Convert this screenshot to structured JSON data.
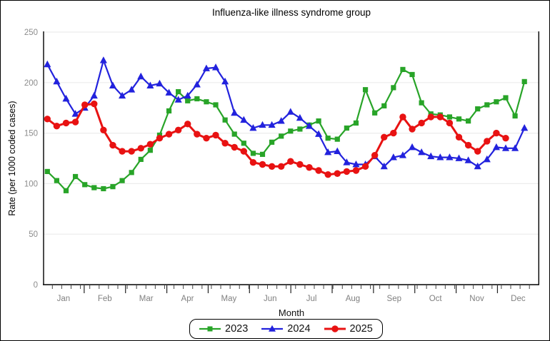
{
  "chart_data": {
    "type": "line",
    "title": "Influenza-like illness syndrome group",
    "xlabel": "Month",
    "ylabel": "Rate (per 1000 coded cases)",
    "ylim": [
      0,
      250
    ],
    "y_ticks": [
      0,
      50,
      100,
      150,
      200,
      250
    ],
    "x_unit": "week-of-year",
    "months": [
      "Jan",
      "Feb",
      "Mar",
      "Apr",
      "May",
      "Jun",
      "Jul",
      "Aug",
      "Sep",
      "Oct",
      "Nov",
      "Dec"
    ],
    "grid": true,
    "legend_position": "bottom",
    "series": [
      {
        "name": "2023",
        "color": "#28a428",
        "marker": "square",
        "values": [
          112,
          103,
          93,
          107,
          99,
          96,
          95,
          97,
          103,
          111,
          124,
          133,
          148,
          172,
          191,
          182,
          184,
          181,
          178,
          163,
          149,
          140,
          130,
          129,
          141,
          147,
          152,
          154,
          158,
          162,
          145,
          144,
          155,
          160,
          193,
          170,
          177,
          195,
          213,
          208,
          180,
          169,
          168,
          166,
          164,
          162,
          174,
          178,
          181,
          185,
          167,
          201
        ]
      },
      {
        "name": "2024",
        "color": "#2222dd",
        "marker": "triangle",
        "values": [
          218,
          201,
          184,
          169,
          175,
          187,
          222,
          197,
          187,
          193,
          206,
          197,
          199,
          190,
          183,
          187,
          198,
          214,
          215,
          201,
          170,
          163,
          155,
          158,
          158,
          162,
          171,
          165,
          157,
          149,
          131,
          132,
          121,
          119,
          119,
          127,
          117,
          126,
          128,
          136,
          131,
          127,
          126,
          126,
          125,
          123,
          117,
          124,
          136,
          135,
          135,
          155
        ]
      },
      {
        "name": "2025",
        "color": "#e81212",
        "marker": "circle",
        "values": [
          164,
          157,
          160,
          161,
          178,
          179,
          153,
          138,
          132,
          132,
          135,
          139,
          145,
          149,
          153,
          159,
          149,
          145,
          148,
          140,
          136,
          132,
          121,
          119,
          117,
          117,
          122,
          119,
          116,
          113,
          109,
          110,
          112,
          113,
          117,
          128,
          146,
          150,
          166,
          154,
          160,
          166,
          166,
          160,
          146,
          138,
          132,
          142,
          150,
          145
        ]
      }
    ]
  }
}
